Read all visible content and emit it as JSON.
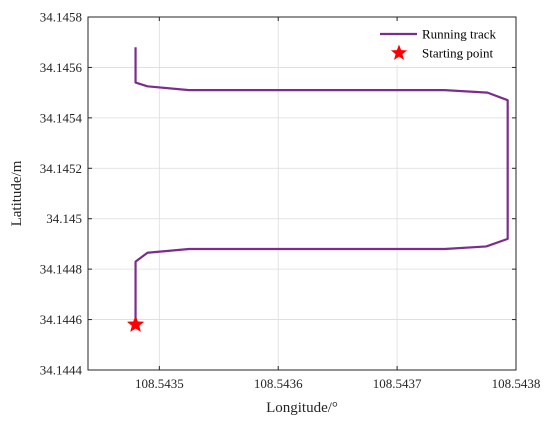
{
  "chart_data": {
    "type": "line",
    "xlabel": "Longitude/°",
    "ylabel": "Latitude/m",
    "xlim": [
      108.54344,
      108.5438
    ],
    "ylim": [
      34.1444,
      34.1458
    ],
    "x_ticks": [
      "108.5435",
      "108.5436",
      "108.5437",
      "108.5438"
    ],
    "x_tick_values": [
      108.5435,
      108.5436,
      108.5437,
      108.5438
    ],
    "y_ticks": [
      "34.1444",
      "34.1446",
      "34.1448",
      "34.145",
      "34.1452",
      "34.1454",
      "34.1456",
      "34.1458"
    ],
    "y_tick_values": [
      34.1444,
      34.1446,
      34.1448,
      34.145,
      34.1452,
      34.1454,
      34.1456,
      34.1458
    ],
    "grid": true,
    "legend_position": "top-right",
    "colors": {
      "track": "#7b2d8e",
      "start": "#ff0000"
    },
    "series": [
      {
        "name": "Running track",
        "kind": "line",
        "points": [
          [
            108.54348,
            34.14458
          ],
          [
            108.54348,
            34.14483
          ],
          [
            108.54349,
            34.144865
          ],
          [
            108.543525,
            34.14488
          ],
          [
            108.54374,
            34.14488
          ],
          [
            108.543775,
            34.14489
          ],
          [
            108.543793,
            34.14492
          ],
          [
            108.543793,
            34.14547
          ],
          [
            108.543776,
            34.1455
          ],
          [
            108.54374,
            34.14551
          ],
          [
            108.543525,
            34.14551
          ],
          [
            108.54349,
            34.145525
          ],
          [
            108.54348,
            34.14554
          ],
          [
            108.54348,
            34.14568
          ]
        ]
      },
      {
        "name": "Starting point",
        "kind": "marker",
        "points": [
          [
            108.54348,
            34.14458
          ]
        ]
      }
    ]
  }
}
